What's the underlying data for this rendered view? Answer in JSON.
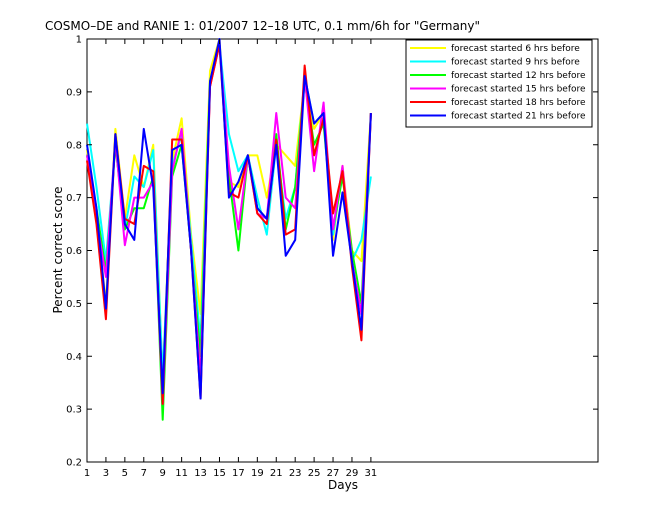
{
  "chart_data": {
    "type": "line",
    "title": "COSMO–DE and RANIE 1: 01/2007 12–18 UTC, 0.1 mm/6h for \"Germany\"",
    "xlabel": "Days",
    "ylabel": "Percent correct score",
    "xlim": [
      1,
      55
    ],
    "ylim": [
      0.2,
      1
    ],
    "xticks": [
      1,
      3,
      5,
      7,
      9,
      11,
      13,
      15,
      17,
      19,
      21,
      23,
      25,
      27,
      29,
      31
    ],
    "yticks": [
      0.2,
      0.3,
      0.4,
      0.5,
      0.6,
      0.7,
      0.8,
      0.9,
      1
    ],
    "ytick_labels": [
      "0.2",
      "0.3",
      "0.4",
      "0.5",
      "0.6",
      "0.7",
      "0.8",
      "0.9",
      "1"
    ],
    "grid": false,
    "legend_position": "top-right",
    "x": [
      1,
      2,
      3,
      4,
      5,
      6,
      7,
      8,
      9,
      10,
      11,
      12,
      13,
      14,
      15,
      16,
      17,
      18,
      19,
      20,
      21,
      22,
      23,
      24,
      25,
      26,
      27,
      28,
      29,
      30,
      31
    ],
    "series": [
      {
        "name": "forecast started 6 hrs before",
        "color": "#ffff00",
        "values": [
          0.79,
          0.67,
          0.5,
          0.83,
          0.66,
          0.78,
          0.72,
          0.8,
          0.36,
          0.77,
          0.85,
          0.63,
          0.48,
          0.94,
          1.0,
          0.73,
          0.72,
          0.78,
          0.78,
          0.7,
          0.8,
          0.78,
          0.76,
          0.92,
          0.83,
          0.86,
          0.62,
          0.76,
          0.6,
          0.58,
          0.86
        ]
      },
      {
        "name": "forecast started 9 hrs before",
        "color": "#00ffff",
        "values": [
          0.84,
          0.72,
          0.58,
          0.8,
          0.64,
          0.74,
          0.72,
          0.79,
          0.36,
          0.76,
          0.82,
          0.62,
          0.43,
          0.92,
          0.99,
          0.82,
          0.75,
          0.78,
          0.7,
          0.63,
          0.8,
          0.66,
          0.72,
          0.93,
          0.84,
          0.86,
          0.63,
          0.75,
          0.58,
          0.62,
          0.74
        ]
      },
      {
        "name": "forecast started 12 hrs before",
        "color": "#00ff00",
        "values": [
          0.78,
          0.68,
          0.56,
          0.8,
          0.64,
          0.68,
          0.68,
          0.74,
          0.28,
          0.74,
          0.8,
          0.6,
          0.4,
          0.92,
          0.99,
          0.74,
          0.6,
          0.78,
          0.68,
          0.66,
          0.82,
          0.64,
          0.72,
          0.92,
          0.8,
          0.84,
          0.64,
          0.74,
          0.6,
          0.5,
          0.86
        ]
      },
      {
        "name": "forecast started 15 hrs before",
        "color": "#ff00ff",
        "values": [
          0.78,
          0.66,
          0.55,
          0.81,
          0.61,
          0.7,
          0.7,
          0.73,
          0.31,
          0.75,
          0.83,
          0.6,
          0.36,
          0.91,
          0.99,
          0.76,
          0.64,
          0.78,
          0.67,
          0.66,
          0.86,
          0.7,
          0.68,
          0.93,
          0.75,
          0.88,
          0.64,
          0.76,
          0.58,
          0.48,
          0.86
        ]
      },
      {
        "name": "forecast started 18 hrs before",
        "color": "#ff0000",
        "values": [
          0.77,
          0.65,
          0.47,
          0.82,
          0.66,
          0.65,
          0.76,
          0.75,
          0.31,
          0.81,
          0.81,
          0.6,
          0.32,
          0.91,
          0.99,
          0.71,
          0.7,
          0.78,
          0.67,
          0.65,
          0.81,
          0.63,
          0.64,
          0.95,
          0.78,
          0.85,
          0.67,
          0.75,
          0.57,
          0.43,
          0.86
        ]
      },
      {
        "name": "forecast started 21 hrs before",
        "color": "#0000ff",
        "values": [
          0.8,
          0.68,
          0.49,
          0.82,
          0.65,
          0.62,
          0.83,
          0.72,
          0.33,
          0.79,
          0.8,
          0.6,
          0.32,
          0.92,
          1.0,
          0.7,
          0.73,
          0.78,
          0.68,
          0.66,
          0.8,
          0.59,
          0.62,
          0.93,
          0.84,
          0.86,
          0.59,
          0.71,
          0.58,
          0.45,
          0.86
        ]
      }
    ]
  }
}
